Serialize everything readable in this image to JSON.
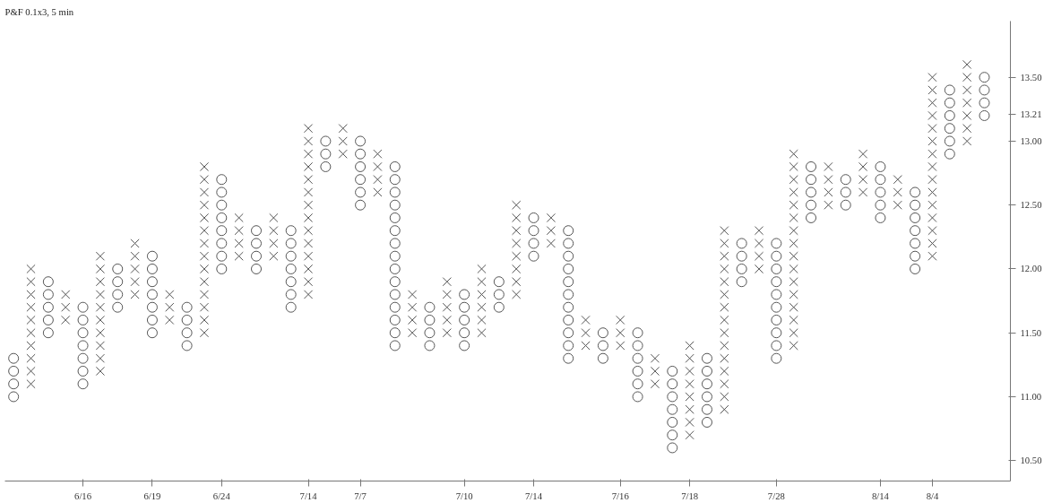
{
  "chart_data": {
    "type": "scatter",
    "title": "P&F 0.1x3, 5 min",
    "categories": [
      null,
      null,
      null,
      null,
      "6/16",
      null,
      null,
      null,
      "6/19",
      null,
      null,
      null,
      "6/24",
      null,
      null,
      null,
      null,
      "7/14",
      null,
      null,
      "7/7",
      null,
      null,
      null,
      null,
      null,
      "7/10",
      null,
      null,
      null,
      "7/14",
      null,
      null,
      null,
      null,
      "7/16",
      null,
      null,
      null,
      "7/18",
      null,
      null,
      null,
      null,
      "7/28",
      null,
      null,
      null,
      null,
      null,
      "8/14",
      null,
      null,
      "8/4",
      null,
      null,
      null
    ],
    "ylim": [
      10.34,
      13.94
    ],
    "yticks": [
      {
        "value": 10.5,
        "label": "10.50"
      },
      {
        "value": 11,
        "label": "11.00"
      },
      {
        "value": 11.5,
        "label": "11.50"
      },
      {
        "value": 12,
        "label": "12.00"
      },
      {
        "value": 12.5,
        "label": "12.50"
      },
      {
        "value": 13,
        "label": "13.00"
      },
      {
        "value": 13.21,
        "label": "13.21"
      },
      {
        "value": 13.5,
        "label": "13.50"
      }
    ],
    "series": [
      {
        "color": "#555555",
        "marker": "cross",
        "values": [
          null,
          11.1,
          null,
          11.6,
          null,
          11.2,
          null,
          11.8,
          null,
          11.6,
          null,
          11.5,
          null,
          12.1,
          null,
          12.1,
          null,
          11.8,
          null,
          12.9,
          null,
          12.6,
          null,
          11.5,
          null,
          11.5,
          null,
          11.5,
          null,
          11.8,
          null,
          12.2,
          null,
          11.4,
          null,
          11.4,
          null,
          11.1,
          null,
          10.7,
          null,
          10.9,
          null,
          12.0,
          null,
          11.4,
          null,
          12.5,
          null,
          12.6,
          null,
          12.5,
          null,
          12.1,
          null,
          13.0,
          null
        ]
      },
      {
        "color": "#555555",
        "marker": "cross",
        "values": [
          null,
          11.2,
          null,
          11.7,
          null,
          11.3,
          null,
          11.9,
          null,
          11.7,
          null,
          11.6,
          null,
          12.2,
          null,
          12.2,
          null,
          11.9,
          null,
          13.0,
          null,
          12.7,
          null,
          11.6,
          null,
          11.6,
          null,
          11.6,
          null,
          11.9,
          null,
          12.3,
          null,
          11.5,
          null,
          11.5,
          null,
          11.2,
          null,
          10.8,
          null,
          11.0,
          null,
          12.1,
          null,
          11.5,
          null,
          12.6,
          null,
          12.7,
          null,
          12.6,
          null,
          12.2,
          null,
          13.1,
          null
        ]
      },
      {
        "color": "#555555",
        "marker": "cross",
        "values": [
          null,
          11.3,
          null,
          11.8,
          null,
          11.4,
          null,
          12.0,
          null,
          11.8,
          null,
          11.7,
          null,
          12.3,
          null,
          12.3,
          null,
          12.0,
          null,
          13.1,
          null,
          12.8,
          null,
          11.7,
          null,
          11.7,
          null,
          11.7,
          null,
          12.0,
          null,
          12.4,
          null,
          11.6,
          null,
          11.6,
          null,
          11.3,
          null,
          10.9,
          null,
          11.1,
          null,
          12.2,
          null,
          11.6,
          null,
          12.7,
          null,
          12.8,
          null,
          12.7,
          null,
          12.3,
          null,
          13.2,
          null
        ]
      },
      {
        "color": "#555555",
        "marker": "cross",
        "values": [
          null,
          11.4,
          null,
          null,
          null,
          11.5,
          null,
          12.1,
          null,
          null,
          null,
          11.8,
          null,
          12.4,
          null,
          12.4,
          null,
          12.1,
          null,
          null,
          null,
          12.9,
          null,
          11.8,
          null,
          11.8,
          null,
          11.8,
          null,
          12.1,
          null,
          null,
          null,
          null,
          null,
          null,
          null,
          null,
          null,
          11.0,
          null,
          11.2,
          null,
          12.3,
          null,
          11.7,
          null,
          12.8,
          null,
          12.9,
          null,
          null,
          null,
          12.4,
          null,
          13.3,
          null
        ]
      },
      {
        "color": "#555555",
        "marker": "cross",
        "values": [
          null,
          11.5,
          null,
          null,
          null,
          11.6,
          null,
          12.2,
          null,
          null,
          null,
          11.9,
          null,
          null,
          null,
          null,
          null,
          12.2,
          null,
          null,
          null,
          null,
          null,
          null,
          null,
          11.9,
          null,
          11.9,
          null,
          12.2,
          null,
          null,
          null,
          null,
          null,
          null,
          null,
          null,
          null,
          11.1,
          null,
          11.3,
          null,
          null,
          null,
          11.8,
          null,
          null,
          null,
          null,
          null,
          null,
          null,
          12.5,
          null,
          13.4,
          null
        ]
      },
      {
        "color": "#555555",
        "marker": "cross",
        "values": [
          null,
          11.6,
          null,
          null,
          null,
          11.7,
          null,
          null,
          null,
          null,
          null,
          12.0,
          null,
          null,
          null,
          null,
          null,
          12.3,
          null,
          null,
          null,
          null,
          null,
          null,
          null,
          null,
          null,
          12.0,
          null,
          12.3,
          null,
          null,
          null,
          null,
          null,
          null,
          null,
          null,
          null,
          11.2,
          null,
          11.4,
          null,
          null,
          null,
          11.9,
          null,
          null,
          null,
          null,
          null,
          null,
          null,
          12.6,
          null,
          13.5,
          null
        ]
      },
      {
        "color": "#555555",
        "marker": "cross",
        "values": [
          null,
          11.7,
          null,
          null,
          null,
          11.8,
          null,
          null,
          null,
          null,
          null,
          12.1,
          null,
          null,
          null,
          null,
          null,
          12.4,
          null,
          null,
          null,
          null,
          null,
          null,
          null,
          null,
          null,
          null,
          null,
          12.4,
          null,
          null,
          null,
          null,
          null,
          null,
          null,
          null,
          null,
          11.3,
          null,
          11.5,
          null,
          null,
          null,
          12.0,
          null,
          null,
          null,
          null,
          null,
          null,
          null,
          12.7,
          null,
          13.6,
          null
        ]
      },
      {
        "color": "#555555",
        "marker": "cross",
        "values": [
          null,
          11.8,
          null,
          null,
          null,
          11.9,
          null,
          null,
          null,
          null,
          null,
          12.2,
          null,
          null,
          null,
          null,
          null,
          12.5,
          null,
          null,
          null,
          null,
          null,
          null,
          null,
          null,
          null,
          null,
          null,
          12.5,
          null,
          null,
          null,
          null,
          null,
          null,
          null,
          null,
          null,
          11.4,
          null,
          11.6,
          null,
          null,
          null,
          12.1,
          null,
          null,
          null,
          null,
          null,
          null,
          null,
          12.8,
          null,
          null,
          null
        ]
      },
      {
        "color": "#555555",
        "marker": "cross",
        "values": [
          null,
          11.9,
          null,
          null,
          null,
          12.0,
          null,
          null,
          null,
          null,
          null,
          12.3,
          null,
          null,
          null,
          null,
          null,
          12.6,
          null,
          null,
          null,
          null,
          null,
          null,
          null,
          null,
          null,
          null,
          null,
          null,
          null,
          null,
          null,
          null,
          null,
          null,
          null,
          null,
          null,
          null,
          null,
          11.7,
          null,
          null,
          null,
          12.2,
          null,
          null,
          null,
          null,
          null,
          null,
          null,
          12.9,
          null,
          null,
          null
        ]
      },
      {
        "color": "#555555",
        "marker": "cross",
        "values": [
          null,
          12.0,
          null,
          null,
          null,
          12.1,
          null,
          null,
          null,
          null,
          null,
          12.4,
          null,
          null,
          null,
          null,
          null,
          12.7,
          null,
          null,
          null,
          null,
          null,
          null,
          null,
          null,
          null,
          null,
          null,
          null,
          null,
          null,
          null,
          null,
          null,
          null,
          null,
          null,
          null,
          null,
          null,
          11.8,
          null,
          null,
          null,
          12.3,
          null,
          null,
          null,
          null,
          null,
          null,
          null,
          13.0,
          null,
          null,
          null
        ]
      },
      {
        "color": "#555555",
        "marker": "cross",
        "values": [
          null,
          null,
          null,
          null,
          null,
          null,
          null,
          null,
          null,
          null,
          null,
          12.5,
          null,
          null,
          null,
          null,
          null,
          12.8,
          null,
          null,
          null,
          null,
          null,
          null,
          null,
          null,
          null,
          null,
          null,
          null,
          null,
          null,
          null,
          null,
          null,
          null,
          null,
          null,
          null,
          null,
          null,
          11.9,
          null,
          null,
          null,
          12.4,
          null,
          null,
          null,
          null,
          null,
          null,
          null,
          13.1,
          null,
          null,
          null
        ]
      },
      {
        "color": "#555555",
        "marker": "cross",
        "values": [
          null,
          null,
          null,
          null,
          null,
          null,
          null,
          null,
          null,
          null,
          null,
          12.6,
          null,
          null,
          null,
          null,
          null,
          12.9,
          null,
          null,
          null,
          null,
          null,
          null,
          null,
          null,
          null,
          null,
          null,
          null,
          null,
          null,
          null,
          null,
          null,
          null,
          null,
          null,
          null,
          null,
          null,
          12.0,
          null,
          null,
          null,
          12.5,
          null,
          null,
          null,
          null,
          null,
          null,
          null,
          13.2,
          null,
          null,
          null
        ]
      },
      {
        "color": "#555555",
        "marker": "cross",
        "values": [
          null,
          null,
          null,
          null,
          null,
          null,
          null,
          null,
          null,
          null,
          null,
          12.7,
          null,
          null,
          null,
          null,
          null,
          13.0,
          null,
          null,
          null,
          null,
          null,
          null,
          null,
          null,
          null,
          null,
          null,
          null,
          null,
          null,
          null,
          null,
          null,
          null,
          null,
          null,
          null,
          null,
          null,
          12.1,
          null,
          null,
          null,
          12.6,
          null,
          null,
          null,
          null,
          null,
          null,
          null,
          13.3,
          null,
          null,
          null
        ]
      },
      {
        "color": "#555555",
        "marker": "cross",
        "values": [
          null,
          null,
          null,
          null,
          null,
          null,
          null,
          null,
          null,
          null,
          null,
          12.8,
          null,
          null,
          null,
          null,
          null,
          13.1,
          null,
          null,
          null,
          null,
          null,
          null,
          null,
          null,
          null,
          null,
          null,
          null,
          null,
          null,
          null,
          null,
          null,
          null,
          null,
          null,
          null,
          null,
          null,
          12.2,
          null,
          null,
          null,
          12.7,
          null,
          null,
          null,
          null,
          null,
          null,
          null,
          13.4,
          null,
          null,
          null
        ]
      },
      {
        "color": "#555555",
        "marker": "cross",
        "values": [
          null,
          null,
          null,
          null,
          null,
          null,
          null,
          null,
          null,
          null,
          null,
          null,
          null,
          null,
          null,
          null,
          null,
          null,
          null,
          null,
          null,
          null,
          null,
          null,
          null,
          null,
          null,
          null,
          null,
          null,
          null,
          null,
          null,
          null,
          null,
          null,
          null,
          null,
          null,
          null,
          null,
          12.3,
          null,
          null,
          null,
          12.8,
          null,
          null,
          null,
          null,
          null,
          null,
          null,
          13.5,
          null,
          null,
          null
        ]
      },
      {
        "color": "#555555",
        "marker": "cross",
        "values": [
          null,
          null,
          null,
          null,
          null,
          null,
          null,
          null,
          null,
          null,
          null,
          null,
          null,
          null,
          null,
          null,
          null,
          null,
          null,
          null,
          null,
          null,
          null,
          null,
          null,
          null,
          null,
          null,
          null,
          null,
          null,
          null,
          null,
          null,
          null,
          null,
          null,
          null,
          null,
          null,
          null,
          null,
          null,
          null,
          null,
          12.9,
          null,
          null,
          null,
          null,
          null,
          null,
          null,
          null,
          null,
          null,
          null
        ]
      },
      {
        "color": "#555555",
        "marker": "circle",
        "values": [
          11.0,
          null,
          11.5,
          null,
          11.1,
          null,
          11.7,
          null,
          11.5,
          null,
          11.4,
          null,
          12.0,
          null,
          12.0,
          null,
          11.7,
          null,
          12.8,
          null,
          12.5,
          null,
          11.4,
          null,
          11.4,
          null,
          11.4,
          null,
          11.7,
          null,
          12.1,
          null,
          11.3,
          null,
          11.3,
          null,
          11.0,
          null,
          10.6,
          null,
          10.8,
          null,
          11.9,
          null,
          11.3,
          null,
          12.4,
          null,
          12.5,
          null,
          12.4,
          null,
          12.0,
          null,
          12.9,
          null,
          13.2
        ]
      },
      {
        "color": "#555555",
        "marker": "circle",
        "values": [
          11.1,
          null,
          11.6,
          null,
          11.2,
          null,
          11.8,
          null,
          11.6,
          null,
          11.5,
          null,
          12.1,
          null,
          12.1,
          null,
          11.8,
          null,
          12.9,
          null,
          12.6,
          null,
          11.5,
          null,
          11.5,
          null,
          11.5,
          null,
          11.8,
          null,
          12.2,
          null,
          11.4,
          null,
          11.4,
          null,
          11.1,
          null,
          10.7,
          null,
          10.9,
          null,
          12.0,
          null,
          11.4,
          null,
          12.5,
          null,
          12.6,
          null,
          12.5,
          null,
          12.1,
          null,
          13.0,
          null,
          13.3
        ]
      },
      {
        "color": "#555555",
        "marker": "circle",
        "values": [
          11.2,
          null,
          11.7,
          null,
          11.3,
          null,
          11.9,
          null,
          11.7,
          null,
          11.6,
          null,
          12.2,
          null,
          12.2,
          null,
          11.9,
          null,
          13.0,
          null,
          12.7,
          null,
          11.6,
          null,
          11.6,
          null,
          11.6,
          null,
          11.9,
          null,
          12.3,
          null,
          11.5,
          null,
          11.5,
          null,
          11.2,
          null,
          10.8,
          null,
          11.0,
          null,
          12.1,
          null,
          11.5,
          null,
          12.6,
          null,
          12.7,
          null,
          12.6,
          null,
          12.2,
          null,
          13.1,
          null,
          13.4
        ]
      },
      {
        "color": "#555555",
        "marker": "circle",
        "values": [
          11.3,
          null,
          11.8,
          null,
          11.4,
          null,
          12.0,
          null,
          11.8,
          null,
          11.7,
          null,
          12.3,
          null,
          12.3,
          null,
          12.0,
          null,
          null,
          null,
          12.8,
          null,
          11.7,
          null,
          11.7,
          null,
          11.7,
          null,
          null,
          null,
          12.4,
          null,
          11.6,
          null,
          null,
          null,
          11.3,
          null,
          10.9,
          null,
          11.1,
          null,
          12.2,
          null,
          11.6,
          null,
          12.7,
          null,
          null,
          null,
          12.7,
          null,
          12.3,
          null,
          13.2,
          null,
          13.5
        ]
      },
      {
        "color": "#555555",
        "marker": "circle",
        "values": [
          null,
          null,
          11.9,
          null,
          11.5,
          null,
          null,
          null,
          11.9,
          null,
          null,
          null,
          12.4,
          null,
          null,
          null,
          12.1,
          null,
          null,
          null,
          12.9,
          null,
          11.8,
          null,
          null,
          null,
          11.8,
          null,
          null,
          null,
          null,
          null,
          11.7,
          null,
          null,
          null,
          11.4,
          null,
          11.0,
          null,
          11.2,
          null,
          null,
          null,
          11.7,
          null,
          12.8,
          null,
          null,
          null,
          12.8,
          null,
          12.4,
          null,
          13.3,
          null,
          null
        ]
      },
      {
        "color": "#555555",
        "marker": "circle",
        "values": [
          null,
          null,
          null,
          null,
          11.6,
          null,
          null,
          null,
          12.0,
          null,
          null,
          null,
          12.5,
          null,
          null,
          null,
          12.2,
          null,
          null,
          null,
          13.0,
          null,
          11.9,
          null,
          null,
          null,
          null,
          null,
          null,
          null,
          null,
          null,
          11.8,
          null,
          null,
          null,
          11.5,
          null,
          11.1,
          null,
          11.3,
          null,
          null,
          null,
          11.8,
          null,
          null,
          null,
          null,
          null,
          null,
          null,
          12.5,
          null,
          13.4,
          null,
          null
        ]
      },
      {
        "color": "#555555",
        "marker": "circle",
        "values": [
          null,
          null,
          null,
          null,
          11.7,
          null,
          null,
          null,
          12.1,
          null,
          null,
          null,
          12.6,
          null,
          null,
          null,
          12.3,
          null,
          null,
          null,
          null,
          null,
          12.0,
          null,
          null,
          null,
          null,
          null,
          null,
          null,
          null,
          null,
          11.9,
          null,
          null,
          null,
          null,
          null,
          11.2,
          null,
          null,
          null,
          null,
          null,
          11.9,
          null,
          null,
          null,
          null,
          null,
          null,
          null,
          12.6,
          null,
          null,
          null,
          null
        ]
      },
      {
        "color": "#555555",
        "marker": "circle",
        "values": [
          null,
          null,
          null,
          null,
          null,
          null,
          null,
          null,
          null,
          null,
          null,
          null,
          12.7,
          null,
          null,
          null,
          null,
          null,
          null,
          null,
          null,
          null,
          12.1,
          null,
          null,
          null,
          null,
          null,
          null,
          null,
          null,
          null,
          12.0,
          null,
          null,
          null,
          null,
          null,
          null,
          null,
          null,
          null,
          null,
          null,
          12.0,
          null,
          null,
          null,
          null,
          null,
          null,
          null,
          null,
          null,
          null,
          null,
          null
        ]
      },
      {
        "color": "#555555",
        "marker": "circle",
        "values": [
          null,
          null,
          null,
          null,
          null,
          null,
          null,
          null,
          null,
          null,
          null,
          null,
          null,
          null,
          null,
          null,
          null,
          null,
          null,
          null,
          null,
          null,
          12.2,
          null,
          null,
          null,
          null,
          null,
          null,
          null,
          null,
          null,
          12.1,
          null,
          null,
          null,
          null,
          null,
          null,
          null,
          null,
          null,
          null,
          null,
          12.1,
          null,
          null,
          null,
          null,
          null,
          null,
          null,
          null,
          null,
          null,
          null,
          null
        ]
      },
      {
        "color": "#555555",
        "marker": "circle",
        "values": [
          null,
          null,
          null,
          null,
          null,
          null,
          null,
          null,
          null,
          null,
          null,
          null,
          null,
          null,
          null,
          null,
          null,
          null,
          null,
          null,
          null,
          null,
          12.3,
          null,
          null,
          null,
          null,
          null,
          null,
          null,
          null,
          null,
          12.2,
          null,
          null,
          null,
          null,
          null,
          null,
          null,
          null,
          null,
          null,
          null,
          12.2,
          null,
          null,
          null,
          null,
          null,
          null,
          null,
          null,
          null,
          null,
          null,
          null
        ]
      },
      {
        "color": "#555555",
        "marker": "circle",
        "values": [
          null,
          null,
          null,
          null,
          null,
          null,
          null,
          null,
          null,
          null,
          null,
          null,
          null,
          null,
          null,
          null,
          null,
          null,
          null,
          null,
          null,
          null,
          12.4,
          null,
          null,
          null,
          null,
          null,
          null,
          null,
          null,
          null,
          12.3,
          null,
          null,
          null,
          null,
          null,
          null,
          null,
          null,
          null,
          null,
          null,
          null,
          null,
          null,
          null,
          null,
          null,
          null,
          null,
          null,
          null,
          null,
          null,
          null
        ]
      },
      {
        "color": "#555555",
        "marker": "circle",
        "values": [
          null,
          null,
          null,
          null,
          null,
          null,
          null,
          null,
          null,
          null,
          null,
          null,
          null,
          null,
          null,
          null,
          null,
          null,
          null,
          null,
          null,
          null,
          12.5,
          null,
          null,
          null,
          null,
          null,
          null,
          null,
          null,
          null,
          null,
          null,
          null,
          null,
          null,
          null,
          null,
          null,
          null,
          null,
          null,
          null,
          null,
          null,
          null,
          null,
          null,
          null,
          null,
          null,
          null,
          null,
          null,
          null,
          null
        ]
      },
      {
        "color": "#555555",
        "marker": "circle",
        "values": [
          null,
          null,
          null,
          null,
          null,
          null,
          null,
          null,
          null,
          null,
          null,
          null,
          null,
          null,
          null,
          null,
          null,
          null,
          null,
          null,
          null,
          null,
          12.6,
          null,
          null,
          null,
          null,
          null,
          null,
          null,
          null,
          null,
          null,
          null,
          null,
          null,
          null,
          null,
          null,
          null,
          null,
          null,
          null,
          null,
          null,
          null,
          null,
          null,
          null,
          null,
          null,
          null,
          null,
          null,
          null,
          null,
          null
        ]
      },
      {
        "color": "#555555",
        "marker": "circle",
        "values": [
          null,
          null,
          null,
          null,
          null,
          null,
          null,
          null,
          null,
          null,
          null,
          null,
          null,
          null,
          null,
          null,
          null,
          null,
          null,
          null,
          null,
          null,
          12.7,
          null,
          null,
          null,
          null,
          null,
          null,
          null,
          null,
          null,
          null,
          null,
          null,
          null,
          null,
          null,
          null,
          null,
          null,
          null,
          null,
          null,
          null,
          null,
          null,
          null,
          null,
          null,
          null,
          null,
          null,
          null,
          null,
          null,
          null
        ]
      },
      {
        "color": "#555555",
        "marker": "circle",
        "values": [
          null,
          null,
          null,
          null,
          null,
          null,
          null,
          null,
          null,
          null,
          null,
          null,
          null,
          null,
          null,
          null,
          null,
          null,
          null,
          null,
          null,
          null,
          12.8,
          null,
          null,
          null,
          null,
          null,
          null,
          null,
          null,
          null,
          null,
          null,
          null,
          null,
          null,
          null,
          null,
          null,
          null,
          null,
          null,
          null,
          null,
          null,
          null,
          null,
          null,
          null,
          null,
          null,
          null,
          null,
          null,
          null,
          null
        ]
      }
    ]
  }
}
